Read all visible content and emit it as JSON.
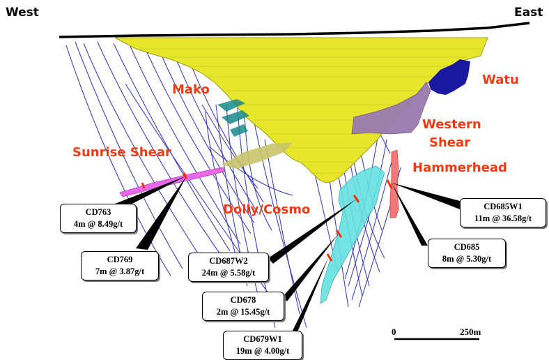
{
  "directions": {
    "west": "West",
    "east": "East"
  },
  "zones": {
    "mako": "Mako",
    "watu": "Watu",
    "western_shear_line1": "Western",
    "western_shear_line2": "Shear",
    "sunrise_shear": "Sunrise Shear",
    "hammerhead": "Hammerhead",
    "dolly_cosmo": "Dolly/Cosmo"
  },
  "intercepts": [
    {
      "hole": "CD763",
      "result": "4m @ 8.49g/t"
    },
    {
      "hole": "CD769",
      "result": "7m @ 3.87g/t"
    },
    {
      "hole": "CD687W2",
      "result": "24m @ 5.58g/t"
    },
    {
      "hole": "CD678",
      "result": "2m @ 15.45g/t"
    },
    {
      "hole": "CD679W1",
      "result": "19m @ 4.00g/t"
    },
    {
      "hole": "CD685W1",
      "result": "11m @ 36.58g/t"
    },
    {
      "hole": "CD685",
      "result": "8m @ 5.30g/t"
    }
  ],
  "scale_bar": {
    "start_label": "0",
    "end_label": "250m"
  },
  "colors": {
    "pit_fill": "#e6e62a",
    "pit_edge": "#9c9c18",
    "drillhole": "#2a2ab4",
    "zone_label": "#f03c14",
    "sunrise_shear": "#e868e8",
    "dolly_cosmo": "#66e0e0",
    "western_shear": "#9a7ab0",
    "watu": "#1a1aa0",
    "intercept_mark": "#ff2a00"
  }
}
